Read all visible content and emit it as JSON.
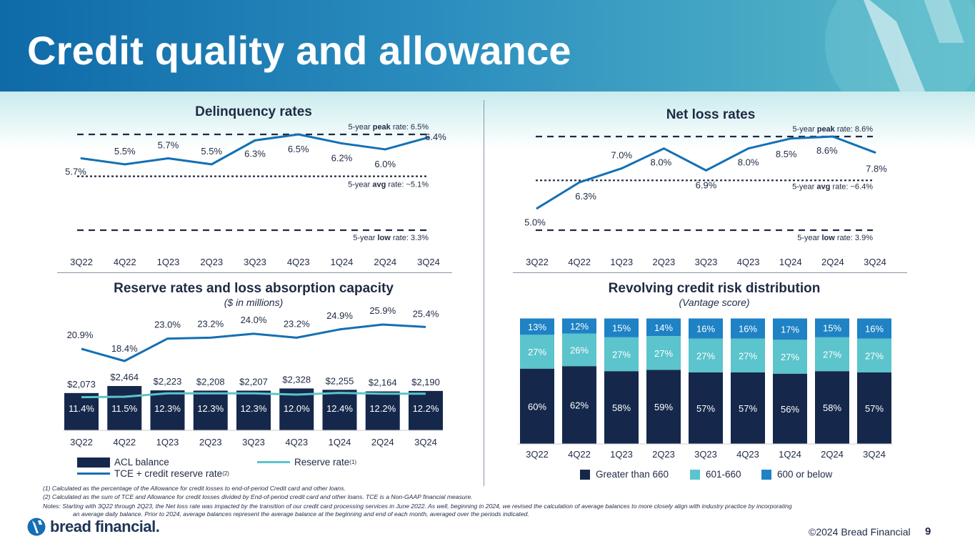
{
  "page": {
    "title": "Credit quality and allowance",
    "copyright": "©2024 Bread Financial",
    "page_number": "9",
    "brand": "bread financial."
  },
  "colors": {
    "navy": "#15284b",
    "line_blue": "#1470b4",
    "teal": "#5bc4cc",
    "mid_blue": "#1e82c5",
    "dash": "#1f2a44"
  },
  "footnotes": [
    "(1) Calculated as the percentage of the Allowance for credit losses to end-of-period Credit card and other loans.",
    "(2) Calculated as the sum of TCE and Allowance for credit losses divided by End-of-period credit card and other loans. TCE is a Non-GAAP financial measure.",
    "Notes: Starting with 3Q22 through 2Q23, the Net loss rate was impacted by the transition of our credit card processing services in June 2022.  As well, beginning in 2024, we revised the calculation of average balances to more closely align with industry practice by incorporating",
    "an average daily balance. Prior to 2024, average balances represent the average balance at the beginning and end of each month, averaged over the periods indicated."
  ],
  "chart_data": [
    {
      "id": "delinquency",
      "type": "line",
      "title": "Delinquency rates",
      "categories": [
        "3Q22",
        "4Q22",
        "1Q23",
        "2Q23",
        "3Q23",
        "4Q23",
        "1Q24",
        "2Q24",
        "3Q24"
      ],
      "series": [
        {
          "values": [
            5.7,
            5.5,
            5.7,
            5.5,
            6.3,
            6.5,
            6.2,
            6.0,
            6.4
          ]
        }
      ],
      "labels": [
        "5.7%",
        "5.5%",
        "5.7%",
        "5.5%",
        "6.3%",
        "6.5%",
        "6.2%",
        "6.0%",
        "6.4%"
      ],
      "reference_lines": [
        {
          "value": 6.5,
          "pre": "5-year ",
          "bold": "peak",
          "post": " rate: 6.5%"
        },
        {
          "value": 5.1,
          "pre": "5-year ",
          "bold": "avg",
          "post": " rate: ~5.1%"
        },
        {
          "value": 3.3,
          "pre": "5-year ",
          "bold": "low",
          "post": " rate: 3.3%"
        }
      ]
    },
    {
      "id": "netloss",
      "type": "line",
      "title": "Net loss rates",
      "categories": [
        "3Q22",
        "4Q22",
        "1Q23",
        "2Q23",
        "3Q23",
        "4Q23",
        "1Q24",
        "2Q24",
        "3Q24"
      ],
      "series": [
        {
          "values": [
            5.0,
            6.3,
            7.0,
            8.0,
            6.9,
            8.0,
            8.5,
            8.6,
            7.8
          ]
        }
      ],
      "labels": [
        "5.0%",
        "6.3%",
        "7.0%",
        "8.0%",
        "6.9%",
        "8.0%",
        "8.5%",
        "8.6%",
        "7.8%"
      ],
      "reference_lines": [
        {
          "value": 8.6,
          "pre": "5-year ",
          "bold": "peak",
          "post": " rate: 8.6%"
        },
        {
          "value": 6.4,
          "pre": "5-year ",
          "bold": "avg",
          "post": " rate: ~6.4%"
        },
        {
          "value": 3.9,
          "pre": "5-year ",
          "bold": "low",
          "post": " rate: 3.9%"
        }
      ]
    },
    {
      "id": "reserve",
      "type": "bar",
      "title": "Reserve rates and loss absorption capacity",
      "subtitle": "($ in millions)",
      "categories": [
        "3Q22",
        "4Q22",
        "1Q23",
        "2Q23",
        "3Q23",
        "4Q23",
        "1Q24",
        "2Q24",
        "3Q24"
      ],
      "series": [
        {
          "name": "ACL balance",
          "type": "bar",
          "values": [
            2073,
            2464,
            2223,
            2208,
            2207,
            2328,
            2255,
            2164,
            2190
          ],
          "labels": [
            "$2,073",
            "$2,464",
            "$2,223",
            "$2,208",
            "$2,207",
            "$2,328",
            "$2,255",
            "$2,164",
            "$2,190"
          ]
        },
        {
          "name": "Reserve rate",
          "name_sup": "(1)",
          "type": "line",
          "values": [
            11.4,
            11.5,
            12.3,
            12.3,
            12.3,
            12.0,
            12.4,
            12.2,
            12.2
          ],
          "labels": [
            "11.4%",
            "11.5%",
            "12.3%",
            "12.3%",
            "12.3%",
            "12.0%",
            "12.4%",
            "12.2%",
            "12.2%"
          ]
        },
        {
          "name": "TCE + credit reserve rate",
          "name_sup": "(2)",
          "type": "line",
          "values": [
            20.9,
            18.4,
            23.0,
            23.2,
            24.0,
            23.2,
            24.9,
            25.9,
            25.4
          ],
          "labels": [
            "20.9%",
            "18.4%",
            "23.0%",
            "23.2%",
            "24.0%",
            "23.2%",
            "24.9%",
            "25.9%",
            "25.4%"
          ]
        }
      ]
    },
    {
      "id": "revolving",
      "type": "bar",
      "stacked": true,
      "title": "Revolving credit risk distribution",
      "subtitle": "(Vantage score)",
      "categories": [
        "3Q22",
        "4Q22",
        "1Q23",
        "2Q23",
        "3Q23",
        "4Q23",
        "1Q24",
        "2Q24",
        "3Q24"
      ],
      "series": [
        {
          "name": "Greater than 660",
          "values": [
            60,
            62,
            58,
            59,
            57,
            57,
            56,
            58,
            57
          ]
        },
        {
          "name": "601-660",
          "values": [
            27,
            26,
            27,
            27,
            27,
            27,
            27,
            27,
            27
          ]
        },
        {
          "name": "600 or below",
          "values": [
            13,
            12,
            15,
            14,
            16,
            16,
            17,
            15,
            16
          ]
        }
      ]
    }
  ]
}
